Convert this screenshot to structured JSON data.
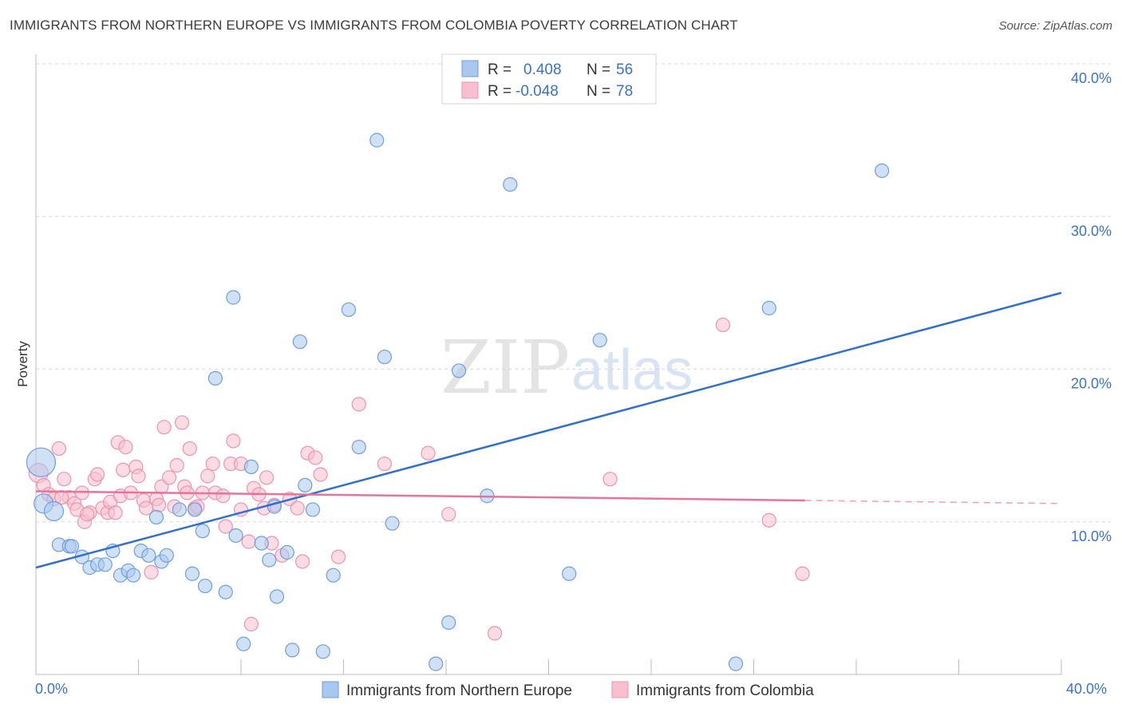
{
  "header": {
    "title": "IMMIGRANTS FROM NORTHERN EUROPE VS IMMIGRANTS FROM COLOMBIA POVERTY CORRELATION CHART",
    "source": "Source: ZipAtlas.com"
  },
  "watermark": {
    "zip": "ZIP",
    "atlas": "atlas"
  },
  "colors": {
    "blue_fill": "#a9c8ef",
    "blue_stroke": "#6d9fdc",
    "blue_line": "#2f6fcf",
    "pink_fill": "#f7bfd0",
    "pink_stroke": "#ec93b0",
    "pink_line": "#e8739b",
    "grid": "#d8d8d8",
    "tick_text": "#3a72c8"
  },
  "legend": {
    "rows": [
      {
        "r_label": "R =",
        "r_value": "0.408",
        "n_label": "N =",
        "n_value": "56"
      },
      {
        "r_label": "R =",
        "r_value": "-0.048",
        "n_label": "N =",
        "n_value": "78"
      }
    ]
  },
  "chart_data": {
    "type": "scatter",
    "title": "IMMIGRANTS FROM NORTHERN EUROPE VS IMMIGRANTS FROM COLOMBIA POVERTY CORRELATION CHART",
    "xlabel": "",
    "ylabel": "Poverty",
    "xlim": [
      0,
      40
    ],
    "ylim": [
      0,
      40
    ],
    "x_tick_labels": [
      "0.0%",
      "40.0%"
    ],
    "y_tick_labels": [
      {
        "value": 10,
        "label": "10.0%"
      },
      {
        "value": 20,
        "label": "20.0%"
      },
      {
        "value": 30,
        "label": "30.0%"
      },
      {
        "value": 40,
        "label": "40.0%"
      }
    ],
    "series": [
      {
        "name": "Immigrants from Northern Europe",
        "color": "#a9c8ef",
        "R": 0.408,
        "N": 56,
        "trend": {
          "x0": 0,
          "y0": 7.0,
          "x1": 40,
          "y1": 25.0
        },
        "points": [
          [
            0.2,
            13.9,
            3
          ],
          [
            0.3,
            11.2,
            2
          ],
          [
            0.7,
            10.7,
            2
          ],
          [
            0.9,
            8.5,
            1
          ],
          [
            1.3,
            8.4,
            1
          ],
          [
            1.4,
            8.4,
            1
          ],
          [
            1.8,
            7.7,
            1
          ],
          [
            2.1,
            7.0,
            1
          ],
          [
            2.4,
            7.2,
            1
          ],
          [
            2.7,
            7.2,
            1
          ],
          [
            3.0,
            8.1,
            1
          ],
          [
            3.3,
            6.5,
            1
          ],
          [
            3.6,
            6.8,
            1
          ],
          [
            3.8,
            6.5,
            1
          ],
          [
            4.1,
            8.1,
            1
          ],
          [
            4.4,
            7.8,
            1
          ],
          [
            4.7,
            10.3,
            1
          ],
          [
            4.9,
            7.4,
            1
          ],
          [
            5.1,
            7.8,
            1
          ],
          [
            5.6,
            10.8,
            1
          ],
          [
            6.1,
            6.6,
            1
          ],
          [
            6.2,
            10.8,
            1
          ],
          [
            6.5,
            9.4,
            1
          ],
          [
            6.6,
            5.8,
            1
          ],
          [
            7.0,
            19.4,
            1
          ],
          [
            7.4,
            5.4,
            1
          ],
          [
            7.7,
            24.7,
            1
          ],
          [
            7.8,
            9.1,
            1
          ],
          [
            8.1,
            2.0,
            1
          ],
          [
            8.4,
            13.6,
            1
          ],
          [
            8.8,
            8.6,
            1
          ],
          [
            9.1,
            7.5,
            1
          ],
          [
            9.3,
            11.0,
            1
          ],
          [
            9.4,
            5.1,
            1
          ],
          [
            9.8,
            8.0,
            1
          ],
          [
            10.0,
            1.6,
            1
          ],
          [
            10.3,
            21.8,
            1
          ],
          [
            10.5,
            12.4,
            1
          ],
          [
            10.8,
            10.8,
            1
          ],
          [
            11.2,
            1.5,
            1
          ],
          [
            11.6,
            6.5,
            1
          ],
          [
            12.2,
            23.9,
            1
          ],
          [
            12.6,
            14.9,
            1
          ],
          [
            13.3,
            35.0,
            1
          ],
          [
            13.6,
            20.8,
            1
          ],
          [
            13.9,
            9.9,
            1
          ],
          [
            15.6,
            0.7,
            1
          ],
          [
            16.1,
            3.4,
            1
          ],
          [
            16.5,
            19.9,
            1
          ],
          [
            17.6,
            11.7,
            1
          ],
          [
            18.5,
            32.1,
            1
          ],
          [
            20.8,
            6.6,
            1
          ],
          [
            22.0,
            21.9,
            1
          ],
          [
            27.3,
            0.7,
            1
          ],
          [
            28.6,
            24.0,
            1
          ],
          [
            33.0,
            33.0,
            1
          ]
        ]
      },
      {
        "name": "Immigrants from Colombia",
        "color": "#f7bfd0",
        "R": -0.048,
        "N": 78,
        "trend": {
          "x0": 0,
          "y0": 12.0,
          "x1": 30,
          "y1": 11.4
        },
        "trend_dashed_to": {
          "x": 40,
          "y": 11.2
        },
        "points": [
          [
            0.1,
            13.2,
            2
          ],
          [
            0.3,
            12.4,
            1
          ],
          [
            0.5,
            11.8,
            1
          ],
          [
            0.7,
            11.5,
            1
          ],
          [
            0.9,
            14.8,
            1
          ],
          [
            1.1,
            12.8,
            1
          ],
          [
            1.3,
            11.6,
            1
          ],
          [
            1.5,
            11.2,
            1
          ],
          [
            1.6,
            10.8,
            1
          ],
          [
            1.8,
            11.9,
            1
          ],
          [
            1.9,
            10.0,
            1
          ],
          [
            2.1,
            10.6,
            1
          ],
          [
            2.3,
            12.8,
            1
          ],
          [
            2.4,
            13.1,
            1
          ],
          [
            2.6,
            10.9,
            1
          ],
          [
            2.8,
            10.6,
            1
          ],
          [
            2.9,
            11.3,
            1
          ],
          [
            3.1,
            10.6,
            1
          ],
          [
            3.2,
            15.2,
            1
          ],
          [
            3.3,
            11.7,
            1
          ],
          [
            3.4,
            13.4,
            1
          ],
          [
            3.5,
            14.9,
            1
          ],
          [
            3.7,
            11.9,
            1
          ],
          [
            3.9,
            13.6,
            1
          ],
          [
            4.0,
            13.0,
            1
          ],
          [
            4.2,
            11.4,
            1
          ],
          [
            4.3,
            10.9,
            1
          ],
          [
            4.5,
            6.7,
            1
          ],
          [
            4.7,
            11.5,
            1
          ],
          [
            4.8,
            11.1,
            1
          ],
          [
            4.9,
            12.3,
            1
          ],
          [
            5.0,
            16.2,
            1
          ],
          [
            5.2,
            12.9,
            1
          ],
          [
            5.4,
            11.0,
            1
          ],
          [
            5.7,
            16.5,
            1
          ],
          [
            5.8,
            12.3,
            1
          ],
          [
            5.9,
            11.9,
            1
          ],
          [
            6.0,
            14.8,
            1
          ],
          [
            6.2,
            10.9,
            1
          ],
          [
            6.3,
            11.0,
            1
          ],
          [
            6.5,
            11.9,
            1
          ],
          [
            6.7,
            13.0,
            1
          ],
          [
            6.9,
            13.8,
            1
          ],
          [
            7.0,
            11.9,
            1
          ],
          [
            7.3,
            11.7,
            1
          ],
          [
            7.4,
            9.7,
            1
          ],
          [
            7.6,
            13.8,
            1
          ],
          [
            7.7,
            15.3,
            1
          ],
          [
            8.0,
            13.8,
            1
          ],
          [
            8.0,
            10.8,
            1
          ],
          [
            8.3,
            8.7,
            1
          ],
          [
            8.4,
            3.3,
            1
          ],
          [
            8.5,
            12.2,
            1
          ],
          [
            8.7,
            11.8,
            1
          ],
          [
            9.0,
            12.9,
            1
          ],
          [
            9.2,
            8.6,
            1
          ],
          [
            9.3,
            11.1,
            1
          ],
          [
            9.6,
            7.8,
            1
          ],
          [
            9.9,
            11.5,
            1
          ],
          [
            10.2,
            10.9,
            1
          ],
          [
            10.4,
            7.4,
            1
          ],
          [
            10.6,
            14.5,
            1
          ],
          [
            10.9,
            14.2,
            1
          ],
          [
            11.1,
            13.1,
            1
          ],
          [
            11.8,
            7.7,
            1
          ],
          [
            12.6,
            17.7,
            1
          ],
          [
            13.6,
            13.8,
            1
          ],
          [
            15.3,
            14.5,
            1
          ],
          [
            16.1,
            10.5,
            1
          ],
          [
            17.9,
            2.7,
            1
          ],
          [
            22.4,
            12.8,
            1
          ],
          [
            26.8,
            22.9,
            1
          ],
          [
            28.6,
            10.1,
            1
          ],
          [
            29.9,
            6.6,
            1
          ],
          [
            1.0,
            11.6,
            1
          ],
          [
            2.0,
            10.5,
            1
          ],
          [
            5.5,
            13.7,
            1
          ],
          [
            8.9,
            10.9,
            1
          ]
        ]
      }
    ]
  },
  "bottom_legend": [
    {
      "label": "Immigrants from Northern Europe"
    },
    {
      "label": "Immigrants from Colombia"
    }
  ]
}
